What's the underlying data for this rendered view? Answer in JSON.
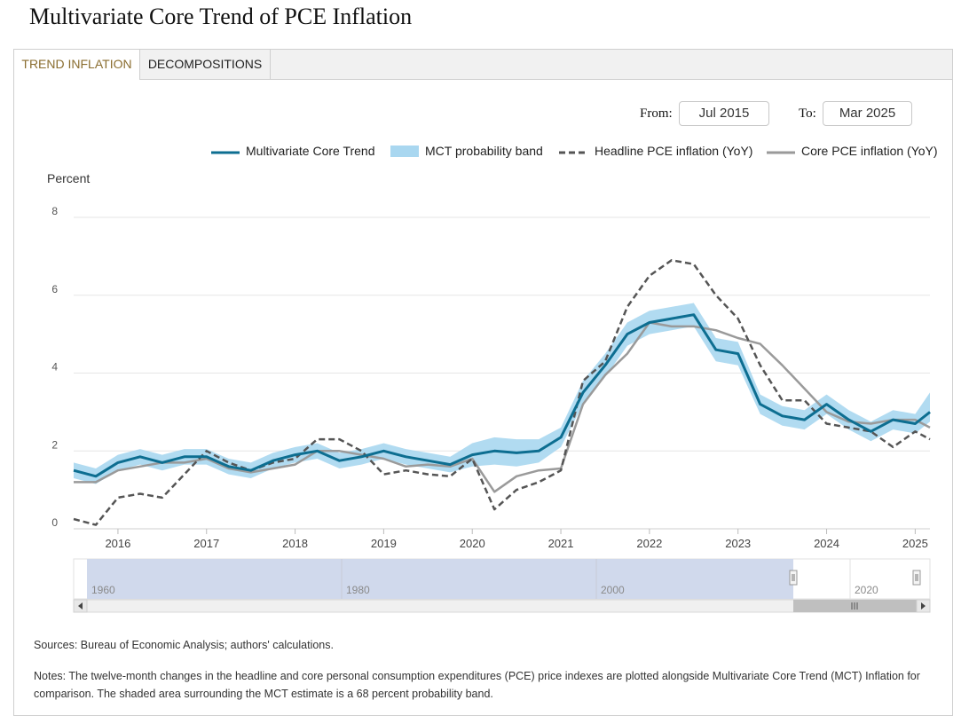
{
  "title": "Multivariate Core Trend of PCE Inflation",
  "tabs": [
    {
      "label": "TREND INFLATION",
      "active": true
    },
    {
      "label": "DECOMPOSITIONS",
      "active": false
    }
  ],
  "range": {
    "from_label": "From:",
    "from_value": "Jul 2015",
    "to_label": "To:",
    "to_value": "Mar 2025"
  },
  "navigator": {
    "labels": [
      "1960",
      "1980",
      "2000",
      "2020"
    ],
    "scroll_left_icon": "chevron-left-icon",
    "scroll_right_icon": "chevron-right-icon",
    "grip_icon": "grip-icon"
  },
  "sources": "Sources: Bureau of Economic Analysis; authors' calculations.",
  "notes": "Notes: The twelve-month changes in the headline and core personal consumption expenditures (PCE) price indexes are plotted alongside Multivariate Core Trend (MCT) Inflation for comparison. The shaded area surrounding the MCT estimate is a 68 percent probability band.",
  "colors": {
    "mct": "#0d6e91",
    "band": "#a9d7f0",
    "headline": "#555555",
    "core": "#9a9a9a",
    "active_tab": "#8a6d2f",
    "navigator_fill": "#d0d9ec"
  },
  "chart_data": {
    "type": "line",
    "title": "",
    "xlabel": "",
    "ylabel": "Percent",
    "ylim": [
      0,
      8
    ],
    "yticks": [
      "0",
      "2",
      "4",
      "6",
      "8"
    ],
    "xlim": [
      "2015-07",
      "2025-03"
    ],
    "xticks": [
      "2016",
      "2017",
      "2018",
      "2019",
      "2020",
      "2021",
      "2022",
      "2023",
      "2024",
      "2025"
    ],
    "grid": true,
    "legend_position": "top-right",
    "x": [
      "2015-07",
      "2015-10",
      "2016-01",
      "2016-04",
      "2016-07",
      "2016-10",
      "2017-01",
      "2017-04",
      "2017-07",
      "2017-10",
      "2018-01",
      "2018-04",
      "2018-07",
      "2018-10",
      "2019-01",
      "2019-04",
      "2019-07",
      "2019-10",
      "2020-01",
      "2020-04",
      "2020-07",
      "2020-10",
      "2021-01",
      "2021-04",
      "2021-07",
      "2021-10",
      "2022-01",
      "2022-04",
      "2022-07",
      "2022-10",
      "2023-01",
      "2023-04",
      "2023-07",
      "2023-10",
      "2024-01",
      "2024-04",
      "2024-07",
      "2024-10",
      "2025-01",
      "2025-03"
    ],
    "series": [
      {
        "name": "Multivariate Core Trend",
        "style": "solid",
        "values": [
          1.5,
          1.35,
          1.7,
          1.85,
          1.7,
          1.85,
          1.85,
          1.6,
          1.5,
          1.75,
          1.9,
          2.0,
          1.75,
          1.85,
          2.0,
          1.85,
          1.75,
          1.65,
          1.9,
          2.0,
          1.95,
          2.0,
          2.35,
          3.5,
          4.2,
          5.0,
          5.3,
          5.4,
          5.5,
          4.6,
          4.5,
          3.2,
          2.9,
          2.8,
          3.2,
          2.8,
          2.5,
          2.8,
          2.7,
          3.0
        ]
      },
      {
        "name": "MCT probability band",
        "style": "band",
        "lower": [
          1.3,
          1.15,
          1.5,
          1.65,
          1.5,
          1.65,
          1.65,
          1.4,
          1.3,
          1.55,
          1.7,
          1.8,
          1.55,
          1.65,
          1.8,
          1.65,
          1.55,
          1.45,
          1.6,
          1.65,
          1.6,
          1.7,
          2.1,
          3.2,
          3.9,
          4.7,
          5.0,
          5.1,
          5.2,
          4.3,
          4.2,
          2.95,
          2.65,
          2.55,
          2.95,
          2.55,
          2.25,
          2.55,
          2.45,
          2.75
        ],
        "upper": [
          1.7,
          1.55,
          1.9,
          2.05,
          1.9,
          2.05,
          2.05,
          1.8,
          1.7,
          1.95,
          2.1,
          2.2,
          1.95,
          2.05,
          2.2,
          2.05,
          1.95,
          1.85,
          2.2,
          2.35,
          2.3,
          2.3,
          2.6,
          3.8,
          4.5,
          5.3,
          5.6,
          5.7,
          5.8,
          4.9,
          4.8,
          3.45,
          3.15,
          3.05,
          3.45,
          3.05,
          2.75,
          3.05,
          2.95,
          3.5
        ]
      },
      {
        "name": "Headline PCE inflation (YoY)",
        "style": "dashed",
        "values": [
          0.25,
          0.1,
          0.8,
          0.9,
          0.8,
          1.4,
          2.0,
          1.7,
          1.5,
          1.7,
          1.8,
          2.3,
          2.3,
          2.0,
          1.4,
          1.5,
          1.4,
          1.35,
          1.8,
          0.5,
          1.0,
          1.2,
          1.5,
          3.8,
          4.3,
          5.7,
          6.5,
          6.9,
          6.8,
          6.0,
          5.4,
          4.2,
          3.3,
          3.3,
          2.7,
          2.6,
          2.5,
          2.1,
          2.5,
          2.3
        ]
      },
      {
        "name": "Core PCE inflation (YoY)",
        "style": "solid",
        "values": [
          1.2,
          1.2,
          1.5,
          1.6,
          1.7,
          1.7,
          1.8,
          1.55,
          1.45,
          1.55,
          1.65,
          2.0,
          2.0,
          1.9,
          1.8,
          1.6,
          1.65,
          1.6,
          1.8,
          0.95,
          1.35,
          1.5,
          1.55,
          3.2,
          3.95,
          4.5,
          5.3,
          5.2,
          5.2,
          5.1,
          4.9,
          4.75,
          4.2,
          3.6,
          3.0,
          2.75,
          2.7,
          2.8,
          2.8,
          2.6
        ]
      }
    ]
  }
}
